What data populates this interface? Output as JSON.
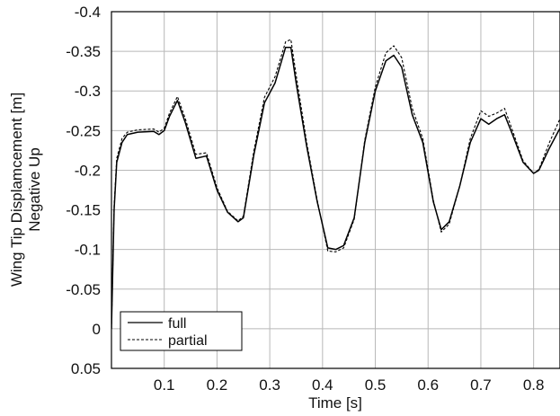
{
  "chart_data": {
    "type": "line",
    "xlabel": "Time [s]",
    "ylabel": "Wing Tip Displamcement [m]",
    "ylabel2": "Negative Up",
    "xlim": [
      0,
      0.85
    ],
    "ylim": [
      0.05,
      -0.4
    ],
    "y_reversed": true,
    "grid": true,
    "legend_position": "bottom-left",
    "xticks": [
      0.1,
      0.2,
      0.3,
      0.4,
      0.5,
      0.6,
      0.7,
      0.8
    ],
    "xtick_labels": [
      "0.1",
      "0.2",
      "0.3",
      "0.4",
      "0.5",
      "0.6",
      "0.7",
      "0.8"
    ],
    "yticks": [
      -0.4,
      -0.35,
      -0.3,
      -0.25,
      -0.2,
      -0.15,
      -0.1,
      -0.05,
      0,
      0.05
    ],
    "ytick_labels": [
      "-0.4",
      "-0.35",
      "-0.3",
      "-0.25",
      "-0.2",
      "-0.15",
      "-0.1",
      "-0.05",
      "0",
      "0.05"
    ],
    "series": [
      {
        "name": "full",
        "style": "solid",
        "color": "#000000",
        "x": [
          0,
          0.005,
          0.01,
          0.02,
          0.03,
          0.05,
          0.08,
          0.09,
          0.1,
          0.11,
          0.125,
          0.14,
          0.16,
          0.18,
          0.2,
          0.22,
          0.24,
          0.25,
          0.27,
          0.29,
          0.31,
          0.33,
          0.34,
          0.35,
          0.37,
          0.39,
          0.41,
          0.425,
          0.44,
          0.46,
          0.48,
          0.5,
          0.52,
          0.535,
          0.55,
          0.57,
          0.59,
          0.61,
          0.625,
          0.64,
          0.66,
          0.68,
          0.7,
          0.715,
          0.73,
          0.745,
          0.76,
          0.78,
          0.8,
          0.81,
          0.83,
          0.85
        ],
        "y": [
          0.0,
          -0.15,
          -0.21,
          -0.235,
          -0.245,
          -0.248,
          -0.249,
          -0.245,
          -0.25,
          -0.268,
          -0.288,
          -0.26,
          -0.215,
          -0.218,
          -0.175,
          -0.147,
          -0.135,
          -0.14,
          -0.22,
          -0.285,
          -0.31,
          -0.355,
          -0.355,
          -0.31,
          -0.23,
          -0.16,
          -0.102,
          -0.1,
          -0.105,
          -0.14,
          -0.235,
          -0.3,
          -0.338,
          -0.345,
          -0.33,
          -0.27,
          -0.235,
          -0.16,
          -0.125,
          -0.135,
          -0.18,
          -0.235,
          -0.265,
          -0.258,
          -0.265,
          -0.27,
          -0.245,
          -0.21,
          -0.196,
          -0.2,
          -0.228,
          -0.253
        ]
      },
      {
        "name": "partial",
        "style": "dashed",
        "color": "#000000",
        "x": [
          0,
          0.005,
          0.01,
          0.02,
          0.03,
          0.05,
          0.08,
          0.09,
          0.1,
          0.11,
          0.125,
          0.14,
          0.16,
          0.18,
          0.2,
          0.22,
          0.24,
          0.25,
          0.27,
          0.29,
          0.31,
          0.33,
          0.34,
          0.35,
          0.37,
          0.39,
          0.41,
          0.425,
          0.44,
          0.46,
          0.48,
          0.5,
          0.52,
          0.535,
          0.55,
          0.57,
          0.59,
          0.61,
          0.625,
          0.64,
          0.66,
          0.68,
          0.7,
          0.715,
          0.73,
          0.745,
          0.76,
          0.78,
          0.8,
          0.81,
          0.83,
          0.85
        ],
        "y": [
          0.0,
          -0.155,
          -0.215,
          -0.24,
          -0.248,
          -0.251,
          -0.252,
          -0.248,
          -0.253,
          -0.272,
          -0.293,
          -0.265,
          -0.22,
          -0.222,
          -0.178,
          -0.148,
          -0.136,
          -0.142,
          -0.225,
          -0.292,
          -0.318,
          -0.362,
          -0.365,
          -0.32,
          -0.235,
          -0.162,
          -0.098,
          -0.097,
          -0.102,
          -0.138,
          -0.238,
          -0.305,
          -0.348,
          -0.357,
          -0.342,
          -0.278,
          -0.24,
          -0.162,
          -0.122,
          -0.132,
          -0.18,
          -0.24,
          -0.275,
          -0.268,
          -0.272,
          -0.278,
          -0.25,
          -0.212,
          -0.196,
          -0.201,
          -0.235,
          -0.265
        ]
      }
    ]
  }
}
